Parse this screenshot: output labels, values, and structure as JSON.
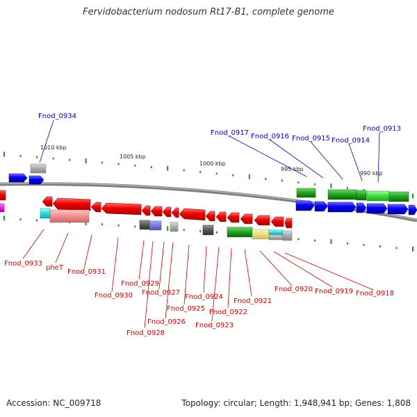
{
  "title": "Fervidobacterium nodosum Rt17-B1, complete genome",
  "footer": {
    "accession": "Accession: NC_009718",
    "summary": "Topology: circular; Length: 1,948,941 bp; Genes: 1,808"
  },
  "scale_labels": [
    "1010 kbp",
    "1005 kbp",
    "1000 kbp",
    "995 kbp",
    "990 kbp"
  ],
  "colors": {
    "forward_label": "#0000cc",
    "reverse_label": "#cc0000",
    "backbone": "#808080",
    "tick": "#2a8a2a"
  },
  "forward_labels": [
    "Fnod_0934",
    "Fnod_0917",
    "Fnod_0916",
    "Fnod_0915",
    "Fnod_0914",
    "Fnod_0913"
  ],
  "reverse_labels": [
    "Fnod_0933",
    "pheT",
    "Fnod_0931",
    "Fnod_0930",
    "Fnod_0929",
    "Fnod_0928",
    "Fnod_0927",
    "Fnod_0926",
    "Fnod_0925",
    "Fnod_0924",
    "Fnod_0923",
    "Fnod_0922",
    "Fnod_0921",
    "Fnod_0920",
    "Fnod_0919",
    "Fnod_0918"
  ]
}
